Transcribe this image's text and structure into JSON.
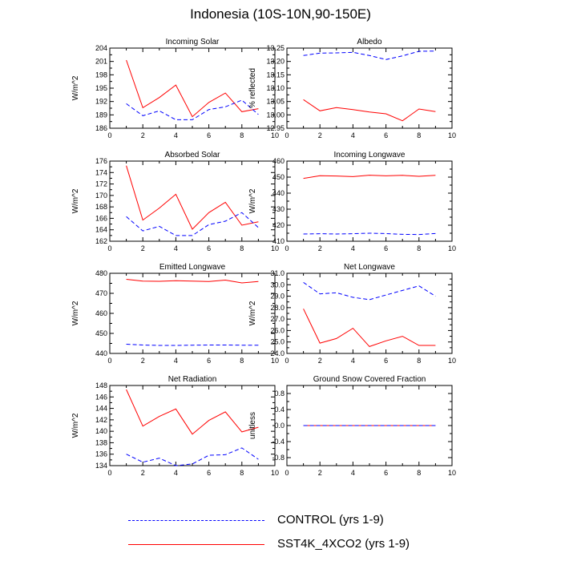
{
  "title": "Indonesia (10S-10N,90-150E)",
  "colors": {
    "control": "#0000ff",
    "sst4k": "#ff0000"
  },
  "legend": [
    {
      "key": "control",
      "label": "CONTROL (yrs 1-9)",
      "style": "dashed"
    },
    {
      "key": "sst4k",
      "label": "SST4K_4XCO2 (yrs 1-9)",
      "style": "solid"
    }
  ],
  "chart_data": [
    {
      "type": "line",
      "title": "Incoming Solar",
      "ylabel": "W/m^2",
      "xlim": [
        0,
        10
      ],
      "ylim": [
        186,
        204
      ],
      "yticks": [
        186,
        189,
        192,
        195,
        198,
        201,
        204
      ],
      "yformat": 0,
      "x": [
        1,
        2,
        3,
        4,
        5,
        6,
        7,
        8,
        9
      ],
      "series": [
        {
          "name": "CONTROL (yrs 1-9)",
          "key": "control",
          "values": [
            191.5,
            188.8,
            189.9,
            187.9,
            187.9,
            190.2,
            190.8,
            192.3,
            189.1
          ]
        },
        {
          "name": "SST4K_4XCO2 (yrs 1-9)",
          "key": "sst4k",
          "values": [
            201.3,
            190.6,
            192.9,
            195.7,
            188.6,
            191.8,
            193.9,
            189.7,
            190.4
          ]
        }
      ]
    },
    {
      "type": "line",
      "title": "Albedo",
      "ylabel": "% reflected",
      "xlim": [
        0,
        10
      ],
      "ylim": [
        12.95,
        13.25
      ],
      "yticks": [
        12.95,
        13.0,
        13.05,
        13.1,
        13.15,
        13.2,
        13.25
      ],
      "yformat": 2,
      "x": [
        1,
        2,
        3,
        4,
        5,
        6,
        7,
        8,
        9
      ],
      "series": [
        {
          "name": "CONTROL (yrs 1-9)",
          "key": "control",
          "values": [
            13.222,
            13.231,
            13.232,
            13.234,
            13.222,
            13.207,
            13.221,
            13.238,
            13.239
          ]
        },
        {
          "name": "SST4K_4XCO2 (yrs 1-9)",
          "key": "sst4k",
          "values": [
            13.057,
            13.015,
            13.027,
            13.02,
            13.011,
            13.004,
            12.978,
            13.022,
            13.012
          ]
        }
      ]
    },
    {
      "type": "line",
      "title": "Absorbed Solar",
      "ylabel": "W/m^2",
      "xlim": [
        0,
        10
      ],
      "ylim": [
        162,
        176
      ],
      "yticks": [
        162,
        164,
        166,
        168,
        170,
        172,
        174,
        176
      ],
      "yformat": 0,
      "x": [
        1,
        2,
        3,
        4,
        5,
        6,
        7,
        8,
        9
      ],
      "series": [
        {
          "name": "CONTROL (yrs 1-9)",
          "key": "control",
          "values": [
            166.3,
            163.8,
            164.6,
            163.0,
            163.0,
            164.9,
            165.5,
            167.0,
            164.4
          ]
        },
        {
          "name": "SST4K_4XCO2 (yrs 1-9)",
          "key": "sst4k",
          "values": [
            175.2,
            165.7,
            167.8,
            170.2,
            164.1,
            167.0,
            168.8,
            164.8,
            165.4
          ]
        }
      ]
    },
    {
      "type": "line",
      "title": "Incoming Longwave",
      "ylabel": "W/m^2",
      "xlim": [
        0,
        10
      ],
      "ylim": [
        410,
        460
      ],
      "yticks": [
        410,
        420,
        430,
        440,
        450,
        460
      ],
      "yformat": 0,
      "x": [
        1,
        2,
        3,
        4,
        5,
        6,
        7,
        8,
        9
      ],
      "series": [
        {
          "name": "CONTROL (yrs 1-9)",
          "key": "control",
          "values": [
            414.5,
            414.7,
            414.5,
            414.7,
            415.0,
            414.8,
            414.3,
            414.2,
            414.8
          ]
        },
        {
          "name": "SST4K_4XCO2 (yrs 1-9)",
          "key": "sst4k",
          "values": [
            449.2,
            450.9,
            450.7,
            450.3,
            451.2,
            450.8,
            451.1,
            450.5,
            451.1
          ]
        }
      ]
    },
    {
      "type": "line",
      "title": "Emitted Longwave",
      "ylabel": "W/m^2",
      "xlim": [
        0,
        10
      ],
      "ylim": [
        440,
        480
      ],
      "yticks": [
        440,
        450,
        460,
        470,
        480
      ],
      "yformat": 0,
      "x": [
        1,
        2,
        3,
        4,
        5,
        6,
        7,
        8,
        9
      ],
      "series": [
        {
          "name": "CONTROL (yrs 1-9)",
          "key": "control",
          "values": [
            444.6,
            444.2,
            444.0,
            444.0,
            444.1,
            444.2,
            444.2,
            444.1,
            444.1
          ]
        },
        {
          "name": "SST4K_4XCO2 (yrs 1-9)",
          "key": "sst4k",
          "values": [
            477.0,
            476.1,
            476.0,
            476.3,
            476.1,
            475.9,
            476.6,
            475.2,
            475.9
          ]
        }
      ]
    },
    {
      "type": "line",
      "title": "Net Longwave",
      "ylabel": "W/m^2",
      "xlim": [
        0,
        10
      ],
      "ylim": [
        24.0,
        31.0
      ],
      "yticks": [
        24.0,
        25.0,
        26.0,
        27.0,
        28.0,
        29.0,
        30.0,
        31.0
      ],
      "yformat": 1,
      "x": [
        1,
        2,
        3,
        4,
        5,
        6,
        7,
        8,
        9
      ],
      "series": [
        {
          "name": "CONTROL (yrs 1-9)",
          "key": "control",
          "values": [
            30.2,
            29.2,
            29.3,
            28.9,
            28.7,
            29.1,
            29.5,
            29.9,
            29.0
          ]
        },
        {
          "name": "SST4K_4XCO2 (yrs 1-9)",
          "key": "sst4k",
          "values": [
            27.9,
            24.9,
            25.3,
            26.2,
            24.6,
            25.1,
            25.5,
            24.7,
            24.7
          ]
        }
      ]
    },
    {
      "type": "line",
      "title": "Net Radiation",
      "ylabel": "W/m^2",
      "xlim": [
        0,
        10
      ],
      "ylim": [
        134,
        148
      ],
      "yticks": [
        134,
        136,
        138,
        140,
        142,
        144,
        146,
        148
      ],
      "yformat": 0,
      "x": [
        1,
        2,
        3,
        4,
        5,
        6,
        7,
        8,
        9
      ],
      "series": [
        {
          "name": "CONTROL (yrs 1-9)",
          "key": "control",
          "values": [
            136.0,
            134.6,
            135.3,
            134.0,
            134.3,
            135.8,
            135.9,
            137.1,
            135.1
          ]
        },
        {
          "name": "SST4K_4XCO2 (yrs 1-9)",
          "key": "sst4k",
          "values": [
            147.3,
            140.9,
            142.6,
            143.9,
            139.5,
            141.9,
            143.4,
            139.9,
            140.7
          ]
        }
      ]
    },
    {
      "type": "line",
      "title": "Ground Snow Covered Fraction",
      "ylabel": "unitless",
      "xlim": [
        0,
        10
      ],
      "ylim": [
        -1.0,
        1.0
      ],
      "yticks": [
        -0.8,
        -0.4,
        0.0,
        0.4,
        0.8
      ],
      "yformat": 1,
      "x": [
        1,
        2,
        3,
        4,
        5,
        6,
        7,
        8,
        9
      ],
      "series": [
        {
          "name": "CONTROL (yrs 1-9)",
          "key": "control",
          "values": [
            0,
            0,
            0,
            0,
            0,
            0,
            0,
            0,
            0
          ]
        },
        {
          "name": "SST4K_4XCO2 (yrs 1-9)",
          "key": "sst4k",
          "values": [
            0,
            0,
            0,
            0,
            0,
            0,
            0,
            0,
            0
          ]
        }
      ]
    }
  ]
}
